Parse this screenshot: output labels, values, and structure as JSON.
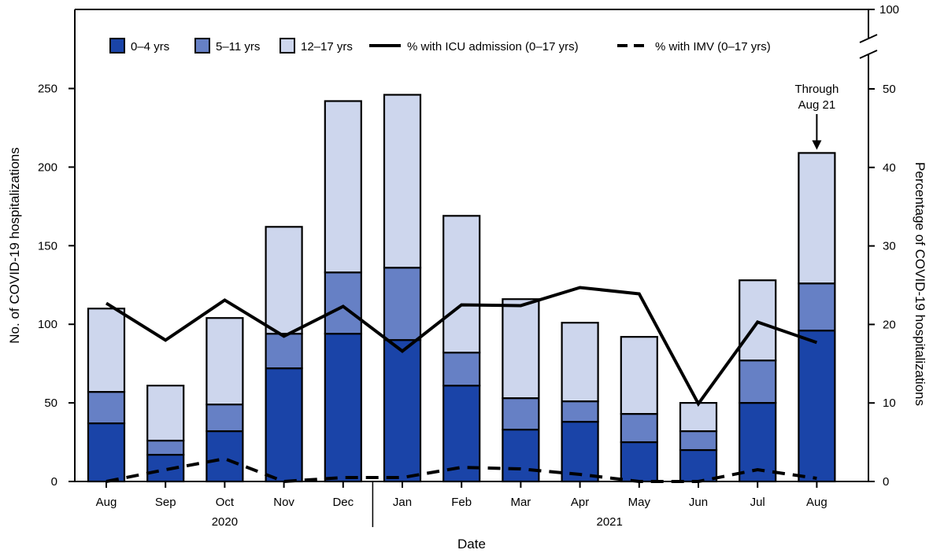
{
  "chart_data": {
    "type": "bar",
    "subtype": "stacked-bar-with-lines",
    "categories": [
      "Aug",
      "Sep",
      "Oct",
      "Nov",
      "Dec",
      "Jan",
      "Feb",
      "Mar",
      "Apr",
      "May",
      "Jun",
      "Jul",
      "Aug"
    ],
    "year_groups": [
      {
        "label": "2020",
        "months": [
          "Aug",
          "Sep",
          "Oct",
          "Nov",
          "Dec"
        ]
      },
      {
        "label": "2021",
        "months": [
          "Jan",
          "Feb",
          "Mar",
          "Apr",
          "May",
          "Jun",
          "Jul",
          "Aug"
        ]
      }
    ],
    "series": [
      {
        "name": "0–4 yrs",
        "color": "#1a44a8",
        "values": [
          37,
          17,
          32,
          72,
          94,
          90,
          61,
          33,
          38,
          25,
          20,
          50,
          96
        ]
      },
      {
        "name": "5–11 yrs",
        "color": "#6680c5",
        "values": [
          20,
          9,
          17,
          22,
          39,
          46,
          21,
          20,
          13,
          18,
          12,
          27,
          30
        ]
      },
      {
        "name": "12–17 yrs",
        "color": "#cdd6ed",
        "values": [
          53,
          35,
          55,
          68,
          109,
          110,
          87,
          63,
          50,
          49,
          18,
          51,
          83
        ]
      }
    ],
    "lines": [
      {
        "name": "% with ICU admission (0–17 yrs)",
        "style": "solid",
        "axis": "right",
        "values": [
          22.7,
          18.0,
          23.1,
          18.5,
          22.3,
          16.6,
          22.5,
          22.4,
          24.7,
          23.9,
          9.9,
          20.3,
          17.7
        ]
      },
      {
        "name": "% with IMV (0–17 yrs)",
        "style": "dashed",
        "axis": "right",
        "values": [
          0,
          1.5,
          2.9,
          0,
          0.5,
          0.5,
          1.8,
          1.6,
          0.9,
          0,
          0,
          1.5,
          0.4
        ]
      }
    ],
    "xlabel": "Date",
    "ylabel": "No. of  COVID-19 hospitalizations",
    "y2label": "Percentage of COVID-19 hospitalizations",
    "ylim": [
      0,
      250
    ],
    "yticks": [
      0,
      50,
      100,
      150,
      200,
      250
    ],
    "y2ticks": [
      0,
      10,
      20,
      30,
      40,
      50
    ],
    "y2_break_top_tick": 100,
    "grid": false,
    "legend_position": "top",
    "annotation": {
      "lines": [
        "Through",
        "Aug 21"
      ],
      "target_index": 12
    }
  }
}
